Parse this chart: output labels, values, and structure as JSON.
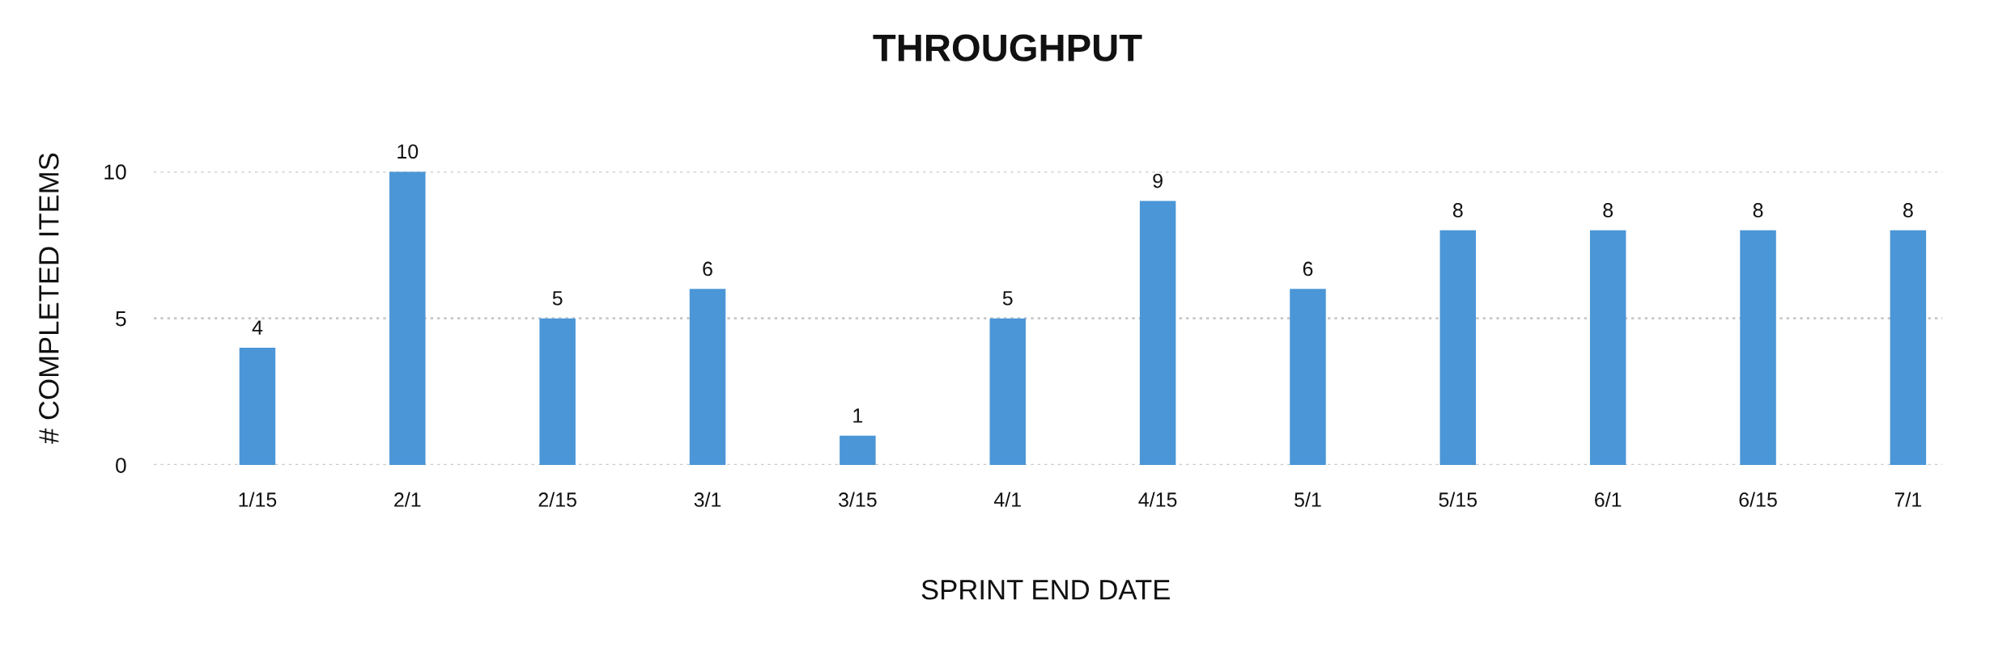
{
  "chart_data": {
    "type": "bar",
    "title": "THROUGHPUT",
    "xlabel": "SPRINT END DATE",
    "ylabel": "# COMPLETED ITEMS",
    "categories": [
      "1/15",
      "2/1",
      "2/15",
      "3/1",
      "3/15",
      "4/1",
      "4/15",
      "5/1",
      "5/15",
      "6/1",
      "6/15",
      "7/1"
    ],
    "values": [
      4,
      10,
      5,
      6,
      1,
      5,
      9,
      6,
      8,
      8,
      8,
      8
    ],
    "color": "#4b96d7",
    "ylim": [
      0,
      10
    ],
    "yticks": [
      0,
      5,
      10
    ],
    "grid": "y",
    "data_labels": true,
    "legend": false
  }
}
